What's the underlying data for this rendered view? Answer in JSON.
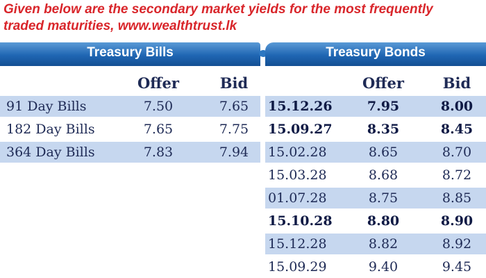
{
  "intro_text": "Given below are the secondary market yields for the most frequently traded maturities, www.wealthtrust.lk",
  "bills": {
    "title": "Treasury Bills",
    "offer_label": "Offer",
    "bid_label": "Bid",
    "rows": [
      {
        "name": "91 Day Bills",
        "offer": "7.50",
        "bid": "7.65"
      },
      {
        "name": "182 Day Bills",
        "offer": "7.65",
        "bid": "7.75"
      },
      {
        "name": "364 Day Bills",
        "offer": "7.83",
        "bid": "7.94"
      }
    ]
  },
  "bonds": {
    "title": "Treasury Bonds",
    "offer_label": "Offer",
    "bid_label": "Bid",
    "rows": [
      {
        "maturity": "15.12.26",
        "offer": "7.95",
        "bid": "8.00",
        "bold": true
      },
      {
        "maturity": "15.09.27",
        "offer": "8.35",
        "bid": "8.45",
        "bold": true
      },
      {
        "maturity": "15.02.28",
        "offer": "8.65",
        "bid": "8.70",
        "bold": false
      },
      {
        "maturity": "15.03.28",
        "offer": "8.68",
        "bid": "8.72",
        "bold": false
      },
      {
        "maturity": "01.07.28",
        "offer": "8.75",
        "bid": "8.85",
        "bold": false
      },
      {
        "maturity": "15.10.28",
        "offer": "8.80",
        "bid": "8.90",
        "bold": true
      },
      {
        "maturity": "15.12.28",
        "offer": "8.82",
        "bid": "8.92",
        "bold": false
      },
      {
        "maturity": "15.09.29",
        "offer": "9.40",
        "bid": "9.45",
        "bold": false
      }
    ]
  },
  "colors": {
    "header_blue": "#1f66b3",
    "band_blue": "#c6d7ef",
    "intro_red": "#d9262b",
    "text_navy": "#1e2a55"
  }
}
